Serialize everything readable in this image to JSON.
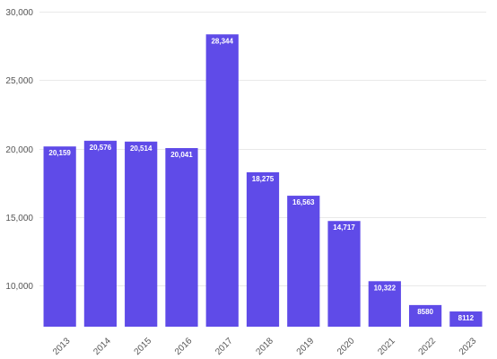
{
  "chart_data": {
    "type": "bar",
    "title": "",
    "xlabel": "",
    "ylabel": "",
    "categories": [
      "2013",
      "2014",
      "2015",
      "2016",
      "2017",
      "2018",
      "2019",
      "2020",
      "2021",
      "2022",
      "2023"
    ],
    "values": [
      20159,
      20576,
      20514,
      20041,
      28344,
      18275,
      16563,
      14717,
      10322,
      8580,
      8112
    ],
    "data_labels": [
      "20,159",
      "20,576",
      "20,514",
      "20,041",
      "28,344",
      "18,275",
      "16,563",
      "14,717",
      "10,322",
      "8580",
      "8112"
    ],
    "ylim": [
      7000,
      30000
    ],
    "yticks": [
      10000,
      15000,
      20000,
      25000,
      30000
    ],
    "ytick_labels": [
      "10,000",
      "15,000",
      "20,000",
      "25,000",
      "30,000"
    ],
    "grid": true,
    "legend": "none",
    "colors": {
      "bar": "#5f4be8",
      "grid": "#e9e9e9",
      "tick_text": "#555555",
      "label_text": "#ffffff"
    }
  }
}
